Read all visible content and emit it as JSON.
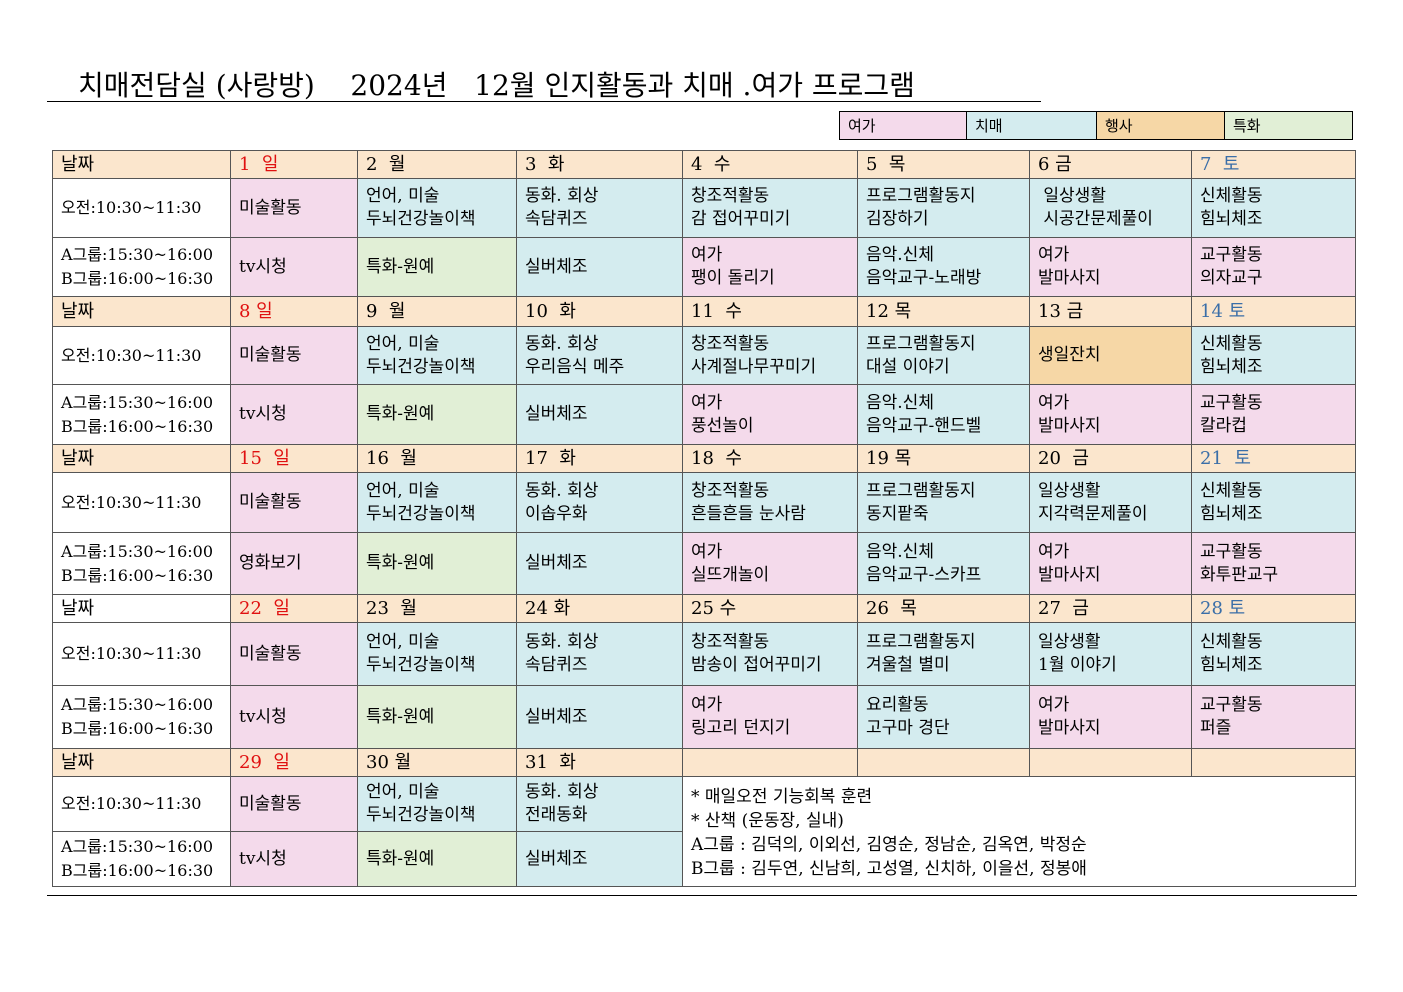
{
  "title": "치매전담실 (사랑방)    2024년   12월 인지활동과 치매 .여가 프로그램",
  "legend": [
    {
      "label": "여가",
      "color": "#f4daeb"
    },
    {
      "label": "치매",
      "color": "#d4ecef"
    },
    {
      "label": "행사",
      "color": "#f6d7a6"
    },
    {
      "label": "특화",
      "color": "#e1efd6"
    }
  ],
  "labels": {
    "date": "날짜",
    "am": "오전:10:30~11:30",
    "pm_a": "A그룹:15:30~16:00",
    "pm_b": "B그룹:16:00~16:30"
  },
  "weeks": [
    {
      "dates": [
        "1  일",
        "2  월",
        "3  화",
        "4  수",
        "5  목",
        "6 금",
        "7  토"
      ],
      "am": [
        [
          "미술활동"
        ],
        [
          "언어, 미술",
          "두뇌건강놀이책"
        ],
        [
          "동화. 회상",
          "속담퀴즈"
        ],
        [
          "창조적활동",
          "감 접어꾸미기"
        ],
        [
          "프로그램활동지",
          "김장하기"
        ],
        [
          " 일상생활",
          " 시공간문제풀이"
        ],
        [
          "신체활동",
          "힘뇌체조"
        ]
      ],
      "pm": [
        [
          "tv시청"
        ],
        [
          "특화-원예"
        ],
        [
          "실버체조"
        ],
        [
          "여가",
          "팽이 돌리기"
        ],
        [
          "음악.신체",
          "음악교구-노래방"
        ],
        [
          "여가",
          "발마사지"
        ],
        [
          "교구활동",
          "의자교구"
        ]
      ]
    },
    {
      "dates": [
        "8 일",
        "9  월",
        "10  화",
        "11  수",
        "12 목",
        "13 금",
        "14 토"
      ],
      "am": [
        [
          "미술활동"
        ],
        [
          "언어, 미술",
          "두뇌건강놀이책"
        ],
        [
          "동화. 회상",
          "우리음식 메주"
        ],
        [
          "창조적활동",
          "사계절나무꾸미기"
        ],
        [
          "프로그램활동지",
          "대설 이야기"
        ],
        [
          "생일잔치"
        ],
        [
          "신체활동",
          "힘뇌체조"
        ]
      ],
      "pm": [
        [
          "tv시청"
        ],
        [
          "특화-원예"
        ],
        [
          "실버체조"
        ],
        [
          "여가",
          "풍선놀이"
        ],
        [
          "음악.신체",
          "음악교구-핸드벨"
        ],
        [
          "여가",
          "발마사지"
        ],
        [
          "교구활동",
          "칼라컵"
        ]
      ]
    },
    {
      "dates": [
        "15  일",
        "16  월",
        "17  화",
        "18  수",
        "19 목",
        "20  금",
        "21  토"
      ],
      "am": [
        [
          "미술활동"
        ],
        [
          "언어, 미술",
          "두뇌건강놀이책"
        ],
        [
          "동화. 회상",
          "이솝우화"
        ],
        [
          "창조적활동",
          "흔들흔들 눈사람"
        ],
        [
          "프로그램활동지",
          "동지팥죽"
        ],
        [
          "일상생활",
          "지각력문제풀이"
        ],
        [
          "신체활동",
          "힘뇌체조"
        ]
      ],
      "pm": [
        [
          "영화보기"
        ],
        [
          "특화-원예"
        ],
        [
          "실버체조"
        ],
        [
          "여가",
          "실뜨개놀이"
        ],
        [
          "음악.신체",
          "음악교구-스카프"
        ],
        [
          "여가",
          "발마사지"
        ],
        [
          "교구활동",
          "화투판교구"
        ]
      ]
    },
    {
      "dates": [
        "22  일",
        "23  월",
        "24 화",
        "25 수",
        "26  목",
        "27  금",
        "28 토"
      ],
      "am": [
        [
          "미술활동"
        ],
        [
          "언어, 미술",
          "두뇌건강놀이책"
        ],
        [
          "동화. 회상",
          "속담퀴즈"
        ],
        [
          "창조적활동",
          "밤송이 접어꾸미기"
        ],
        [
          "프로그램활동지",
          "겨울철 별미"
        ],
        [
          "일상생활",
          "1월 이야기"
        ],
        [
          "신체활동",
          "힘뇌체조"
        ]
      ],
      "pm": [
        [
          "tv시청"
        ],
        [
          "특화-원예"
        ],
        [
          "실버체조"
        ],
        [
          "여가",
          "링고리 던지기"
        ],
        [
          "요리활동",
          "고구마 경단"
        ],
        [
          "여가",
          "발마사지"
        ],
        [
          "교구활동",
          "퍼즐"
        ]
      ]
    },
    {
      "dates": [
        "29  일",
        "30 월",
        "31  화",
        "",
        "",
        "",
        ""
      ],
      "am": [
        [
          "미술활동"
        ],
        [
          "언어, 미술",
          "두뇌건강놀이책"
        ],
        [
          "동화. 회상",
          "전래동화"
        ]
      ],
      "pm": [
        [
          "tv시청"
        ],
        [
          "특화-원예"
        ],
        [
          "실버체조"
        ]
      ]
    }
  ],
  "notes": [
    "* 매일오전 기능회복 훈련",
    "* 산책 (운동장, 실내)",
    "A그룹 : 김덕의, 이외선, 김영순, 정남순, 김옥연, 박정순",
    "B그룹 : 김두연, 신남희, 고성열, 신치하, 이을선, 정봉애"
  ]
}
